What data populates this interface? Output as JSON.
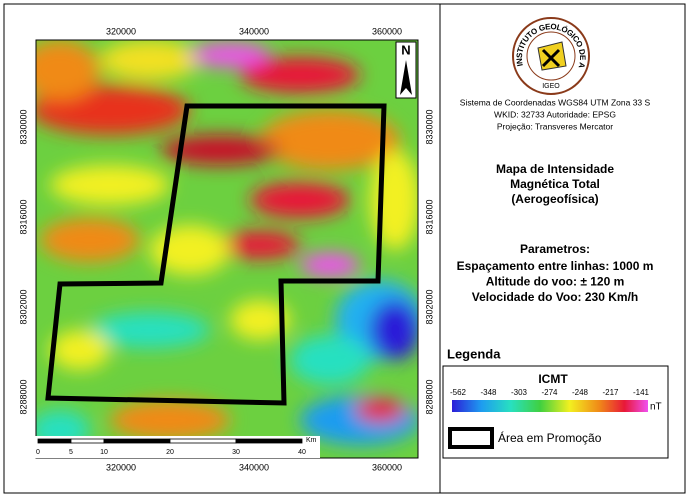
{
  "map": {
    "x_labels": [
      "320000",
      "340000",
      "360000"
    ],
    "y_labels": [
      "8330000",
      "8316000",
      "8302000",
      "8288000"
    ],
    "north": "N",
    "scale_labels": [
      "0",
      "5",
      "10",
      "20",
      "30",
      "40"
    ],
    "scale_unit": "Km"
  },
  "logo": {
    "ring_text": "INSTITUTO GEOLÓGICO DE ANGOLA",
    "acronym": "IGEO"
  },
  "info": {
    "crs_lines": [
      "Sistema de Coordenadas WGS84 UTM Zona 33 S",
      "WKID: 32733 Autoridade: EPSG",
      "Projeção: Transveres Mercator"
    ],
    "title_lines": [
      "Mapa de Intensidade",
      "Magnética Total",
      "(Aerogeofísica)"
    ],
    "params_title": "Parametros:",
    "params": [
      "Espaçamento entre linhas: 1000 m",
      "Altitude do voo: ± 120 m",
      "Velocidade do Voo: 230 Km/h"
    ]
  },
  "legend": {
    "title": "Legenda",
    "ramp_title": "ICMT",
    "ramp_labels": [
      "-562",
      "-348",
      "-303",
      "-274",
      "-248",
      "-217",
      "-141"
    ],
    "unit": "nT",
    "area_label": "Área em Promoção"
  }
}
